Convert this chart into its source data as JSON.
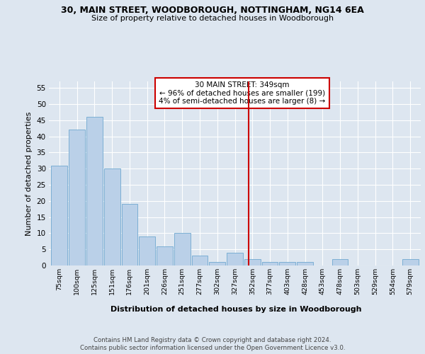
{
  "title": "30, MAIN STREET, WOODBOROUGH, NOTTINGHAM, NG14 6EA",
  "subtitle": "Size of property relative to detached houses in Woodborough",
  "xlabel": "Distribution of detached houses by size in Woodborough",
  "ylabel": "Number of detached properties",
  "categories": [
    "75sqm",
    "100sqm",
    "125sqm",
    "151sqm",
    "176sqm",
    "201sqm",
    "226sqm",
    "251sqm",
    "277sqm",
    "302sqm",
    "327sqm",
    "352sqm",
    "377sqm",
    "403sqm",
    "428sqm",
    "453sqm",
    "478sqm",
    "503sqm",
    "529sqm",
    "554sqm",
    "579sqm"
  ],
  "bar_heights": [
    31,
    42,
    46,
    30,
    19,
    9,
    6,
    10,
    3,
    1,
    4,
    2,
    1,
    1,
    1,
    0,
    2,
    0,
    0,
    0,
    2
  ],
  "bar_color": "#bad0e8",
  "bar_edge_color": "#6fa8d0",
  "ylim": [
    0,
    57
  ],
  "yticks": [
    0,
    5,
    10,
    15,
    20,
    25,
    30,
    35,
    40,
    45,
    50,
    55
  ],
  "vline_index": 11,
  "vline_color": "#cc0000",
  "annotation_text": "30 MAIN STREET: 349sqm\n← 96% of detached houses are smaller (199)\n4% of semi-detached houses are larger (8) →",
  "footer1": "Contains HM Land Registry data © Crown copyright and database right 2024.",
  "footer2": "Contains public sector information licensed under the Open Government Licence v3.0.",
  "bg_color": "#dde6f0",
  "plot_bg_color": "#dde6f0"
}
